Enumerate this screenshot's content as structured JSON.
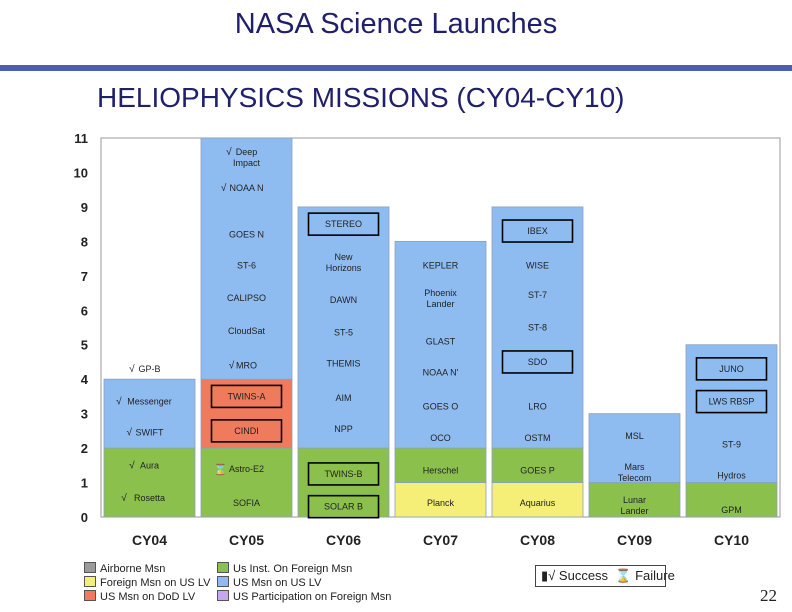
{
  "title": "NASA Science Launches",
  "subtitle": "HELIOPHYSICS MISSIONS (CY04-CY10)",
  "page_number": "22",
  "status_key": {
    "success": "Success",
    "failure": "Failure",
    "success_icon": "check-box-icon",
    "failure_icon": "hourglass-icon"
  },
  "legend": [
    {
      "label": "Airborne Msn",
      "color": "#9a9a9a"
    },
    {
      "label": "Foreign Msn on US LV",
      "color": "#f5ef78"
    },
    {
      "label": "US Msn on DoD LV",
      "color": "#f07a5c"
    },
    {
      "label": "Us Inst. On Foreign Msn",
      "color": "#8cc04c"
    },
    {
      "label": "US Msn on US LV",
      "color": "#8fbcf0"
    },
    {
      "label": "US Participation on Foreign Msn",
      "color": "#c8a6ee"
    }
  ],
  "chart_data": {
    "type": "bar",
    "title": "",
    "xlabel": "",
    "ylabel": "",
    "ylim": [
      0,
      11
    ],
    "yticks": [
      "0",
      "1",
      "2",
      "3",
      "4",
      "5",
      "6",
      "7",
      "8",
      "9",
      "10",
      "11"
    ],
    "categories": [
      "CY04",
      "CY05",
      "CY06",
      "CY07",
      "CY08",
      "CY09",
      "CY10"
    ],
    "colors": {
      "airborne": "#9a9a9a",
      "foreign_us_lv": "#f5ef78",
      "dod_lv": "#f07a5c",
      "us_inst_foreign": "#8cc04c",
      "us_us_lv": "#8fbcf0"
    },
    "stacks": [
      {
        "category": "CY04",
        "segments": [
          [
            "us_inst_foreign",
            2
          ],
          [
            "us_us_lv",
            2
          ]
        ]
      },
      {
        "category": "CY05",
        "segments": [
          [
            "us_inst_foreign",
            2
          ],
          [
            "dod_lv",
            2
          ],
          [
            "us_us_lv",
            7
          ]
        ]
      },
      {
        "category": "CY06",
        "segments": [
          [
            "us_inst_foreign",
            2
          ],
          [
            "us_us_lv",
            7
          ]
        ]
      },
      {
        "category": "CY07",
        "segments": [
          [
            "foreign_us_lv",
            1
          ],
          [
            "us_inst_foreign",
            1
          ],
          [
            "us_us_lv",
            6
          ]
        ]
      },
      {
        "category": "CY08",
        "segments": [
          [
            "foreign_us_lv",
            1
          ],
          [
            "us_inst_foreign",
            1
          ],
          [
            "us_us_lv",
            7
          ]
        ]
      },
      {
        "category": "CY09",
        "segments": [
          [
            "us_inst_foreign",
            1
          ],
          [
            "us_us_lv",
            2
          ]
        ]
      },
      {
        "category": "CY10",
        "segments": [
          [
            "us_inst_foreign",
            1
          ],
          [
            "us_us_lv",
            4
          ]
        ]
      }
    ],
    "missions": [
      {
        "cat": 0,
        "y": 0.55,
        "text": "Rosetta",
        "mark": "check"
      },
      {
        "cat": 0,
        "y": 1.5,
        "text": "Aura",
        "mark": "check"
      },
      {
        "cat": 0,
        "y": 2.45,
        "text": "SWIFT",
        "mark": "check"
      },
      {
        "cat": 0,
        "y": 3.35,
        "text": "Messenger",
        "mark": "check"
      },
      {
        "cat": 0,
        "y": 4.3,
        "text": "GP-B",
        "mark": "check"
      },
      {
        "cat": 1,
        "y": 0.4,
        "text": "SOFIA"
      },
      {
        "cat": 1,
        "y": 1.4,
        "text": "Astro-E2",
        "mark": "fail"
      },
      {
        "cat": 1,
        "y": 2.5,
        "text": "CINDI",
        "box": true
      },
      {
        "cat": 1,
        "y": 3.5,
        "text": "TWINS-A",
        "box": true
      },
      {
        "cat": 1,
        "y": 4.4,
        "text": "MRO",
        "mark": "check"
      },
      {
        "cat": 1,
        "y": 5.4,
        "text": "CloudSat"
      },
      {
        "cat": 1,
        "y": 6.35,
        "text": "CALIPSO"
      },
      {
        "cat": 1,
        "y": 7.3,
        "text": "ST-6"
      },
      {
        "cat": 1,
        "y": 8.2,
        "text": "GOES N"
      },
      {
        "cat": 1,
        "y": 9.55,
        "text": "NOAA N",
        "mark": "check"
      },
      {
        "cat": 1,
        "y": 10.45,
        "text": "Deep",
        "text2": "Impact",
        "mark": "check"
      },
      {
        "cat": 2,
        "y": 0.3,
        "text": "SOLAR B",
        "box": true
      },
      {
        "cat": 2,
        "y": 1.25,
        "text": "TWINS-B",
        "box": true
      },
      {
        "cat": 2,
        "y": 2.55,
        "text": "NPP"
      },
      {
        "cat": 2,
        "y": 3.45,
        "text": "AIM"
      },
      {
        "cat": 2,
        "y": 4.45,
        "text": "THEMIS"
      },
      {
        "cat": 2,
        "y": 5.35,
        "text": "ST-5"
      },
      {
        "cat": 2,
        "y": 6.3,
        "text": "DAWN"
      },
      {
        "cat": 2,
        "y": 7.4,
        "text": "New",
        "text2": "Horizons"
      },
      {
        "cat": 2,
        "y": 8.5,
        "text": "STEREO",
        "box": true
      },
      {
        "cat": 3,
        "y": 0.4,
        "text": "Planck"
      },
      {
        "cat": 3,
        "y": 1.35,
        "text": "Herschel"
      },
      {
        "cat": 3,
        "y": 2.3,
        "text": "OCO"
      },
      {
        "cat": 3,
        "y": 3.2,
        "text": "GOES O"
      },
      {
        "cat": 3,
        "y": 4.2,
        "text": "NOAA N'"
      },
      {
        "cat": 3,
        "y": 5.1,
        "text": "GLAST"
      },
      {
        "cat": 3,
        "y": 6.35,
        "text": "Phoenix",
        "text2": "Lander"
      },
      {
        "cat": 3,
        "y": 7.3,
        "text": "KEPLER"
      },
      {
        "cat": 4,
        "y": 0.4,
        "text": "Aquarius"
      },
      {
        "cat": 4,
        "y": 1.35,
        "text": "GOES P"
      },
      {
        "cat": 4,
        "y": 2.3,
        "text": "OSTM"
      },
      {
        "cat": 4,
        "y": 3.2,
        "text": "LRO"
      },
      {
        "cat": 4,
        "y": 4.5,
        "text": "SDO",
        "box": true
      },
      {
        "cat": 4,
        "y": 5.5,
        "text": "ST-8"
      },
      {
        "cat": 4,
        "y": 6.45,
        "text": "ST-7"
      },
      {
        "cat": 4,
        "y": 7.3,
        "text": "WISE"
      },
      {
        "cat": 4,
        "y": 8.3,
        "text": "IBEX",
        "box": true
      },
      {
        "cat": 5,
        "y": 0.35,
        "text": "Lunar",
        "text2": "Lander"
      },
      {
        "cat": 5,
        "y": 1.3,
        "text": "Mars",
        "text2": "Telecom"
      },
      {
        "cat": 5,
        "y": 2.35,
        "text": "MSL"
      },
      {
        "cat": 6,
        "y": 0.2,
        "text": "GPM"
      },
      {
        "cat": 6,
        "y": 1.2,
        "text": "Hydros"
      },
      {
        "cat": 6,
        "y": 2.1,
        "text": "ST-9"
      },
      {
        "cat": 6,
        "y": 3.35,
        "text": "LWS RBSP",
        "box": true
      },
      {
        "cat": 6,
        "y": 4.3,
        "text": "JUNO",
        "box": true
      }
    ]
  }
}
